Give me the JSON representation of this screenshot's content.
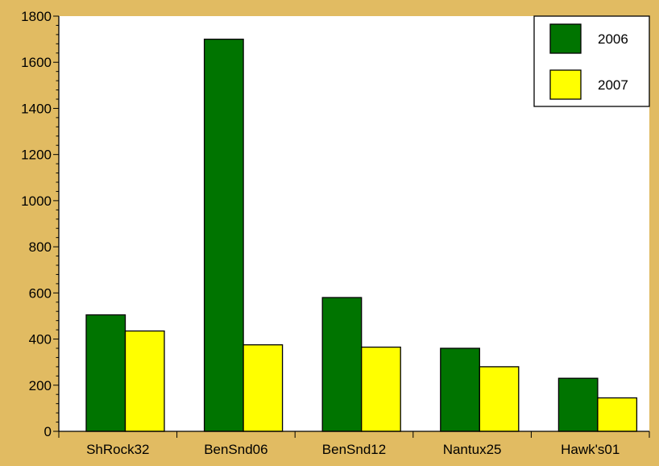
{
  "colors": {
    "background": "#e1bb62",
    "plot_background": "#ffffff",
    "series_2006": "#007400",
    "series_2007": "#ffff00",
    "outline": "#000000"
  },
  "chart_data": {
    "type": "bar",
    "title": "",
    "xlabel": "",
    "ylabel": "",
    "categories": [
      "ShRock32",
      "BenSnd06",
      "BenSnd12",
      "Nantux25",
      "Hawk's01"
    ],
    "series": [
      {
        "name": "2006",
        "color": "#007400",
        "values": [
          505,
          1700,
          580,
          360,
          230
        ]
      },
      {
        "name": "2007",
        "color": "#ffff00",
        "values": [
          435,
          375,
          365,
          280,
          145
        ]
      }
    ],
    "ylim": [
      0,
      1800
    ],
    "y_ticks": [
      "0",
      "200",
      "400",
      "600",
      "800",
      "1000",
      "1200",
      "1400",
      "1600",
      "1800"
    ],
    "y_minor_per_major": 4,
    "grid": false,
    "legend_position": "top-right"
  }
}
